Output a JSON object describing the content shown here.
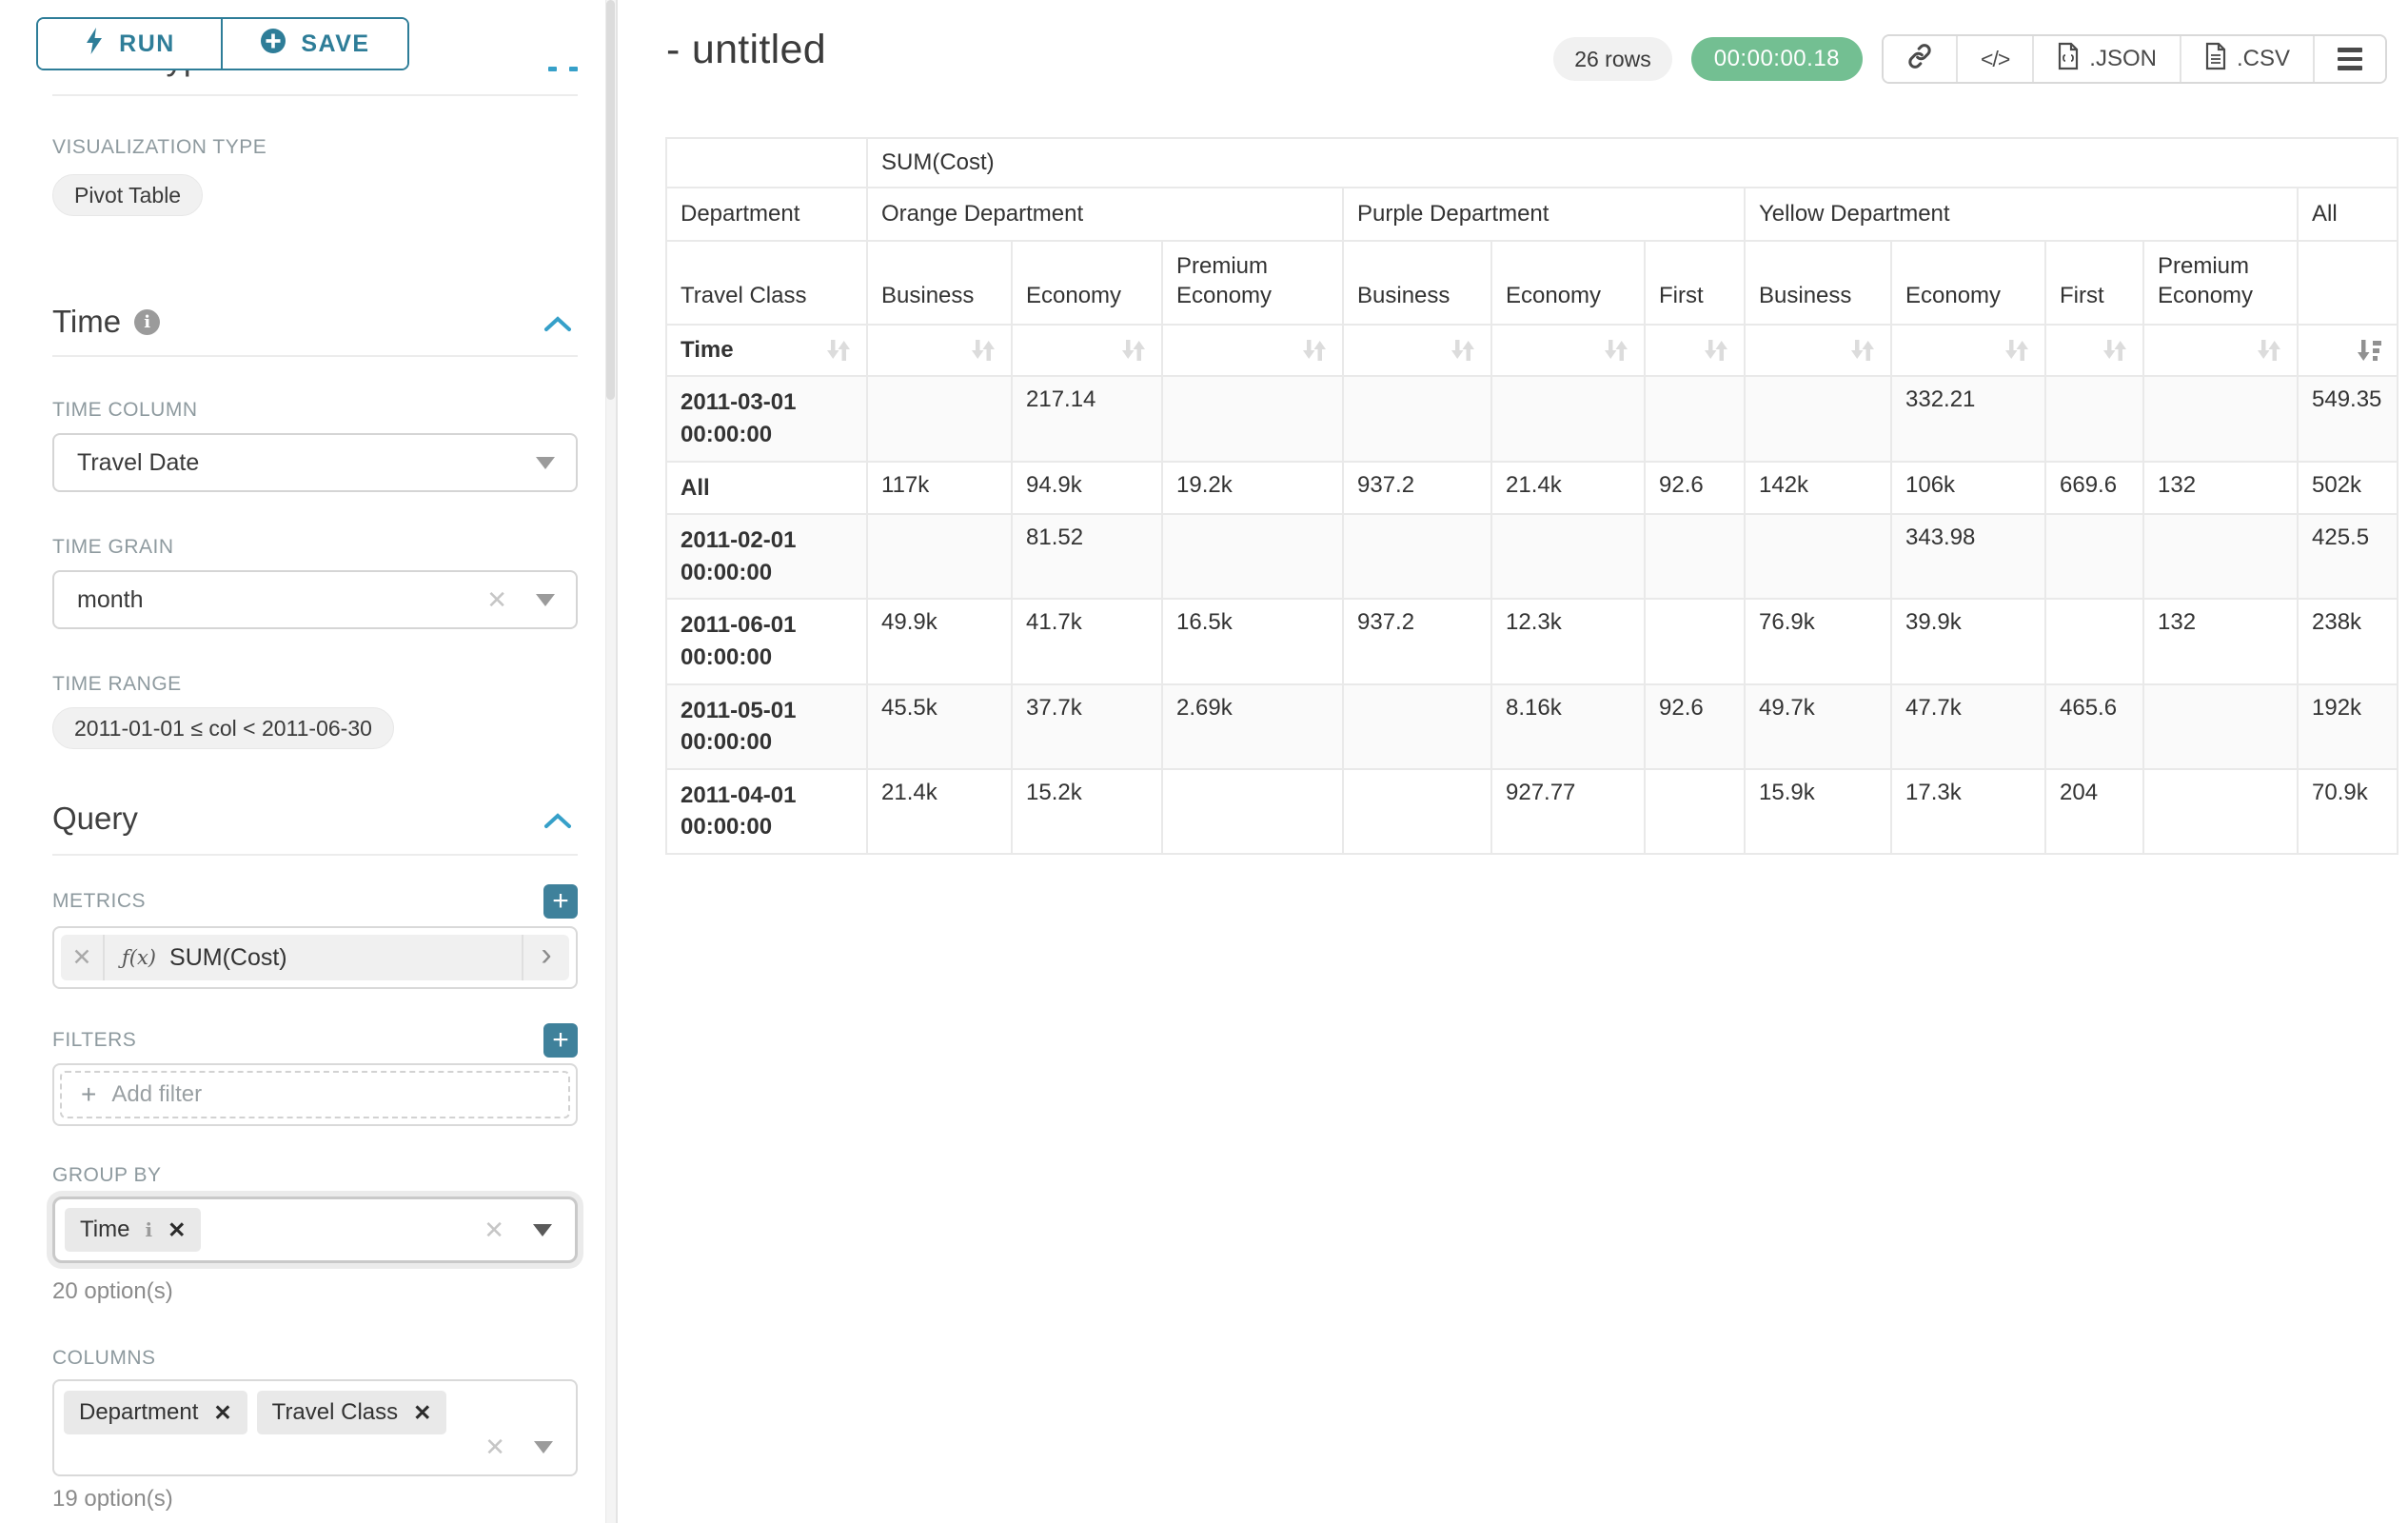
{
  "left_panel": {
    "run_button": "RUN",
    "save_button": "SAVE",
    "chart_type_heading": "Chart Type",
    "visualization_type_label": "VISUALIZATION TYPE",
    "visualization_type_value": "Pivot Table",
    "time_section": {
      "title": "Time",
      "time_column_label": "TIME COLUMN",
      "time_column_value": "Travel Date",
      "time_grain_label": "TIME GRAIN",
      "time_grain_value": "month",
      "time_range_label": "TIME RANGE",
      "time_range_value": "2011-01-01 ≤ col < 2011-06-30"
    },
    "query_section": {
      "title": "Query",
      "metrics_label": "METRICS",
      "metric_fx": "ƒ(x)",
      "metric_value": "SUM(Cost)",
      "filters_label": "FILTERS",
      "add_filter_label": "Add filter",
      "group_by_label": "GROUP BY",
      "group_by_value": "Time",
      "group_by_options_count": "20 option(s)",
      "columns_label": "COLUMNS",
      "columns_values": [
        "Department",
        "Travel Class"
      ],
      "columns_options_count": "19 option(s)"
    }
  },
  "main": {
    "title": "- untitled",
    "rows_badge": "26 rows",
    "timer_badge": "00:00:00.18",
    "export_json_label": ".JSON",
    "export_csv_label": ".CSV"
  },
  "pivot_table": {
    "metric_header": "SUM(Cost)",
    "row_dim_label": "Department",
    "col_groups": [
      {
        "label": "Orange Department",
        "span": 3
      },
      {
        "label": "Purple Department",
        "span": 3
      },
      {
        "label": "Yellow Department",
        "span": 4
      },
      {
        "label": "All",
        "span": 1
      }
    ],
    "class_row_label": "Travel Class",
    "class_headers": [
      "Business",
      "Economy",
      "Premium Economy",
      "Business",
      "Economy",
      "First",
      "Business",
      "Economy",
      "First",
      "Premium Economy",
      ""
    ],
    "sort_row_label": "Time",
    "rows": [
      {
        "label": "2011-03-01 00:00:00",
        "cells": [
          "",
          "217.14",
          "",
          "",
          "",
          "",
          "",
          "332.21",
          "",
          "",
          "549.35"
        ]
      },
      {
        "label": "All",
        "cells": [
          "117k",
          "94.9k",
          "19.2k",
          "937.2",
          "21.4k",
          "92.6",
          "142k",
          "106k",
          "669.6",
          "132",
          "502k"
        ]
      },
      {
        "label": "2011-02-01 00:00:00",
        "cells": [
          "",
          "81.52",
          "",
          "",
          "",
          "",
          "",
          "343.98",
          "",
          "",
          "425.5"
        ]
      },
      {
        "label": "2011-06-01 00:00:00",
        "cells": [
          "49.9k",
          "41.7k",
          "16.5k",
          "937.2",
          "12.3k",
          "",
          "76.9k",
          "39.9k",
          "",
          "132",
          "238k"
        ]
      },
      {
        "label": "2011-05-01 00:00:00",
        "cells": [
          "45.5k",
          "37.7k",
          "2.69k",
          "",
          "8.16k",
          "92.6",
          "49.7k",
          "47.7k",
          "465.6",
          "",
          "192k"
        ]
      },
      {
        "label": "2011-04-01 00:00:00",
        "cells": [
          "21.4k",
          "15.2k",
          "",
          "",
          "927.77",
          "",
          "15.9k",
          "17.3k",
          "204",
          "",
          "70.9k"
        ]
      }
    ]
  },
  "colors": {
    "button_teal": "#2e7d98",
    "accent_teal": "#3f819b",
    "chevron_teal": "#36a0c9",
    "success_green": "#73bf92"
  }
}
